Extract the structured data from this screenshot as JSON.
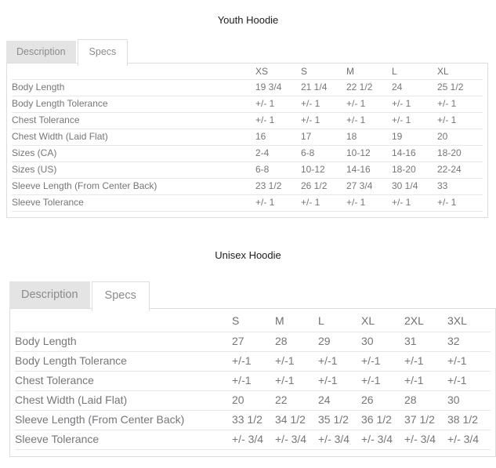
{
  "colors": {
    "tab_inactive_bg": "#e4e4e4",
    "tab_text": "#8b8b8b",
    "panel_border": "#dddddd",
    "row_divider": "#e8e8e8",
    "cell_text": "#76767b",
    "title_text": "#1c1c1c"
  },
  "sections": [
    {
      "title": "Youth Hoodie",
      "tabs": [
        {
          "label": "Description",
          "active": false
        },
        {
          "label": "Specs",
          "active": true
        }
      ],
      "table": {
        "columns": [
          "XS",
          "S",
          "M",
          "L",
          "XL"
        ],
        "rows": [
          {
            "label": "Body Length",
            "values": [
              "19 3/4",
              "21 1/4",
              "22 1/2",
              "24",
              "25 1/2"
            ]
          },
          {
            "label": "Body Length Tolerance",
            "values": [
              "+/- 1",
              "+/- 1",
              "+/- 1",
              "+/- 1",
              "+/- 1"
            ]
          },
          {
            "label": "Chest Tolerance",
            "values": [
              "+/- 1",
              "+/- 1",
              "+/- 1",
              "+/- 1",
              "+/- 1"
            ]
          },
          {
            "label": "Chest Width (Laid Flat)",
            "values": [
              "16",
              "17",
              "18",
              "19",
              "20"
            ]
          },
          {
            "label": "Sizes (CA)",
            "values": [
              "2-4",
              "6-8",
              "10-12",
              "14-16",
              "18-20"
            ]
          },
          {
            "label": "Sizes (US)",
            "values": [
              "6-8",
              "10-12",
              "14-16",
              "18-20",
              "22-24"
            ]
          },
          {
            "label": "Sleeve Length (From Center Back)",
            "values": [
              "23 1/2",
              "26 1/2",
              "27 3/4",
              "30 1/4",
              "33"
            ]
          },
          {
            "label": "Sleeve Tolerance",
            "values": [
              "+/- 1",
              "+/- 1",
              "+/- 1",
              "+/- 1",
              "+/- 1"
            ]
          }
        ]
      }
    },
    {
      "title": "Unisex Hoodie",
      "tabs": [
        {
          "label": "Description",
          "active": false
        },
        {
          "label": "Specs",
          "active": true
        }
      ],
      "table": {
        "columns": [
          "S",
          "M",
          "L",
          "XL",
          "2XL",
          "3XL"
        ],
        "rows": [
          {
            "label": "Body Length",
            "values": [
              "27",
              "28",
              "29",
              "30",
              "31",
              "32"
            ]
          },
          {
            "label": "Body Length Tolerance",
            "values": [
              "+/-1",
              "+/-1",
              "+/-1",
              "+/-1",
              "+/-1",
              "+/-1"
            ]
          },
          {
            "label": "Chest Tolerance",
            "values": [
              "+/-1",
              "+/-1",
              "+/-1",
              "+/-1",
              "+/-1",
              "+/-1"
            ]
          },
          {
            "label": "Chest Width (Laid Flat)",
            "values": [
              "20",
              "22",
              "24",
              "26",
              "28",
              "30"
            ]
          },
          {
            "label": "Sleeve Length (From Center Back)",
            "values": [
              "33 1/2",
              "34 1/2",
              "35 1/2",
              "36 1/2",
              "37 1/2",
              "38 1/2"
            ]
          },
          {
            "label": "Sleeve Tolerance",
            "values": [
              "+/- 3/4",
              "+/- 3/4",
              "+/- 3/4",
              "+/- 3/4",
              "+/- 3/4",
              "+/- 3/4"
            ]
          }
        ]
      }
    }
  ]
}
